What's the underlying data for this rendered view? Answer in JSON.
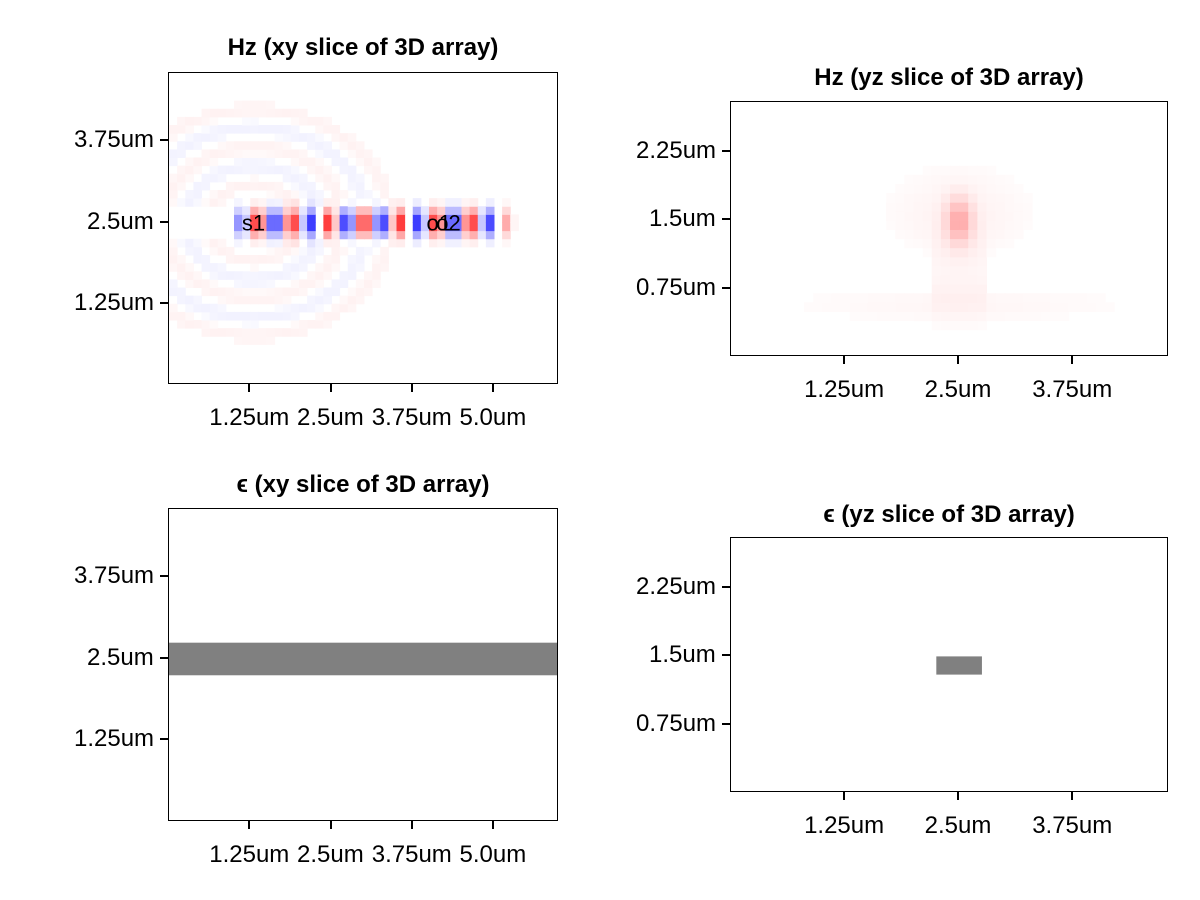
{
  "chart_data": [
    {
      "type": "heatmap",
      "title": "Hz (xy slice of 3D array)",
      "xlabel": "",
      "ylabel": "",
      "x_ticks": [
        "1.25um",
        "2.5um",
        "3.75um",
        "5.0um"
      ],
      "x_tick_values": [
        1.25,
        2.5,
        3.75,
        5.0
      ],
      "y_ticks": [
        "1.25um",
        "2.5um",
        "3.75um"
      ],
      "y_tick_values": [
        1.25,
        2.5,
        3.75
      ],
      "xlim": [
        0.0,
        6.0
      ],
      "ylim": [
        0.0,
        4.8
      ],
      "colormap": "diverging blue-white-red",
      "colors": {
        "positive": "#ff0000",
        "negative": "#0000ff",
        "zero": "#ffffff"
      },
      "waveguide_center_y": 2.5,
      "field_x_range": [
        0.9,
        5.4
      ],
      "wavelength": 0.55,
      "annotations": [
        {
          "text": "s1",
          "x": 1.3,
          "y": 2.5
        },
        {
          "text": "o1",
          "x": 4.15,
          "y": 2.5
        },
        {
          "text": "o2",
          "x": 4.3,
          "y": 2.5
        }
      ]
    },
    {
      "type": "heatmap",
      "title": "Hz (yz slice of 3D array)",
      "xlabel": "",
      "ylabel": "",
      "x_ticks": [
        "1.25um",
        "2.5um",
        "3.75um"
      ],
      "x_tick_values": [
        1.25,
        2.5,
        3.75
      ],
      "y_ticks": [
        "0.75um",
        "1.5um",
        "2.25um"
      ],
      "y_tick_values": [
        0.75,
        1.5,
        2.25
      ],
      "xlim": [
        0.0,
        4.8
      ],
      "ylim": [
        0.0,
        2.8
      ],
      "colormap": "diverging blue-white-red",
      "colors": {
        "positive": "#ff0000",
        "negative": "#0000ff",
        "zero": "#ffffff"
      },
      "peak": {
        "x": 2.5,
        "y": 1.5,
        "sign": "positive"
      }
    },
    {
      "type": "heatmap",
      "title": "ϵ (xy slice of 3D array)",
      "xlabel": "",
      "ylabel": "",
      "x_ticks": [
        "1.25um",
        "2.5um",
        "3.75um",
        "5.0um"
      ],
      "x_tick_values": [
        1.25,
        2.5,
        3.75,
        5.0
      ],
      "y_ticks": [
        "1.25um",
        "2.5um",
        "3.75um"
      ],
      "y_tick_values": [
        1.25,
        2.5,
        3.75
      ],
      "xlim": [
        0.0,
        6.0
      ],
      "ylim": [
        0.0,
        4.8
      ],
      "colors": {
        "core": "#808080",
        "background": "#ffffff"
      },
      "core": {
        "x": [
          0.0,
          6.0
        ],
        "y": [
          2.25,
          2.75
        ]
      }
    },
    {
      "type": "heatmap",
      "title": "ϵ (yz slice of 3D array)",
      "xlabel": "",
      "ylabel": "",
      "x_ticks": [
        "1.25um",
        "2.5um",
        "3.75um"
      ],
      "x_tick_values": [
        1.25,
        2.5,
        3.75
      ],
      "y_ticks": [
        "0.75um",
        "1.5um",
        "2.25um"
      ],
      "y_tick_values": [
        0.75,
        1.5,
        2.25
      ],
      "xlim": [
        0.0,
        4.8
      ],
      "ylim": [
        0.0,
        2.8
      ],
      "colors": {
        "core": "#808080",
        "background": "#ffffff"
      },
      "core": {
        "x": [
          2.25,
          2.75
        ],
        "y": [
          1.3,
          1.5
        ]
      }
    }
  ]
}
